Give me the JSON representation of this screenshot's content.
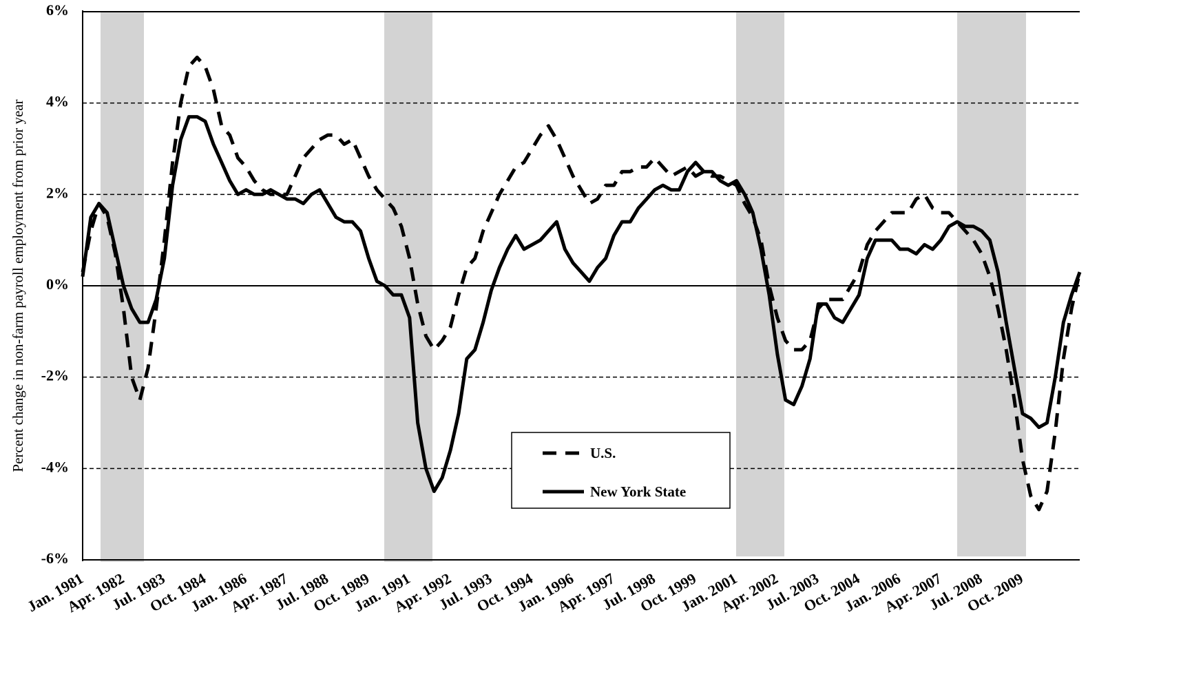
{
  "chart_data": {
    "type": "line",
    "y_label": "Percent change in non-farm payroll employment from prior year",
    "categories": [
      "Jan. 1981",
      null,
      null,
      null,
      null,
      "Apr. 1982",
      null,
      null,
      null,
      null,
      "Jul. 1983",
      null,
      null,
      null,
      null,
      "Oct. 1984",
      null,
      null,
      null,
      null,
      "Jan. 1986",
      null,
      null,
      null,
      null,
      "Apr. 1987",
      null,
      null,
      null,
      null,
      "Jul. 1988",
      null,
      null,
      null,
      null,
      "Oct. 1989",
      null,
      null,
      null,
      null,
      "Jan. 1991",
      null,
      null,
      null,
      null,
      "Apr. 1992",
      null,
      null,
      null,
      null,
      "Jul. 1993",
      null,
      null,
      null,
      null,
      "Oct. 1994",
      null,
      null,
      null,
      null,
      "Jan. 1996",
      null,
      null,
      null,
      null,
      "Apr. 1997",
      null,
      null,
      null,
      null,
      "Jul. 1998",
      null,
      null,
      null,
      null,
      "Oct. 1999",
      null,
      null,
      null,
      null,
      "Jan. 2001",
      null,
      null,
      null,
      null,
      "Apr. 2002",
      null,
      null,
      null,
      null,
      "Jul. 2003",
      null,
      null,
      null,
      null,
      "Oct. 2004",
      null,
      null,
      null,
      null,
      "Jan. 2006",
      null,
      null,
      null,
      null,
      "Apr. 2007",
      null,
      null,
      null,
      null,
      "Jul. 2008",
      null,
      null,
      null,
      null,
      "Oct. 2009",
      null,
      null,
      null,
      null,
      null,
      null,
      null
    ],
    "series": [
      {
        "name": "U.S.",
        "color": "#000000",
        "dashed": true,
        "values": [
          0.3,
          1.2,
          1.8,
          1.5,
          0.7,
          -0.5,
          -2.0,
          -2.5,
          -1.8,
          -0.5,
          1.0,
          2.7,
          4.0,
          4.8,
          5.0,
          4.8,
          4.3,
          3.5,
          3.3,
          2.8,
          2.6,
          2.3,
          2.1,
          2.0,
          2.0,
          2.0,
          2.4,
          2.8,
          3.0,
          3.2,
          3.3,
          3.3,
          3.1,
          3.2,
          2.8,
          2.4,
          2.1,
          1.9,
          1.7,
          1.3,
          0.6,
          -0.4,
          -1.1,
          -1.4,
          -1.2,
          -0.9,
          -0.2,
          0.4,
          0.6,
          1.2,
          1.6,
          2.0,
          2.3,
          2.6,
          2.7,
          3.0,
          3.3,
          3.5,
          3.2,
          2.8,
          2.4,
          2.1,
          1.8,
          1.9,
          2.2,
          2.2,
          2.5,
          2.5,
          2.6,
          2.6,
          2.8,
          2.6,
          2.4,
          2.5,
          2.6,
          2.4,
          2.5,
          2.4,
          2.4,
          2.3,
          2.2,
          1.8,
          1.5,
          1.0,
          0.0,
          -0.7,
          -1.2,
          -1.4,
          -1.4,
          -1.2,
          -0.5,
          -0.3,
          -0.3,
          -0.3,
          0.0,
          0.3,
          0.9,
          1.2,
          1.4,
          1.6,
          1.6,
          1.6,
          1.9,
          2.0,
          1.7,
          1.6,
          1.6,
          1.4,
          1.2,
          1.0,
          0.7,
          0.2,
          -0.5,
          -1.4,
          -2.5,
          -3.8,
          -4.6,
          -4.9,
          -4.5,
          -3.2,
          -1.6,
          -0.5,
          0.3
        ]
      },
      {
        "name": "New York State",
        "color": "#000000",
        "dashed": false,
        "values": [
          0.2,
          1.5,
          1.8,
          1.6,
          0.8,
          0.0,
          -0.5,
          -0.8,
          -0.8,
          -0.3,
          0.6,
          2.2,
          3.2,
          3.7,
          3.7,
          3.6,
          3.1,
          2.7,
          2.3,
          2.0,
          2.1,
          2.0,
          2.0,
          2.1,
          2.0,
          1.9,
          1.9,
          1.8,
          2.0,
          2.1,
          1.8,
          1.5,
          1.4,
          1.4,
          1.2,
          0.6,
          0.1,
          0.0,
          -0.2,
          -0.2,
          -0.7,
          -3.0,
          -4.0,
          -4.5,
          -4.2,
          -3.6,
          -2.8,
          -1.6,
          -1.4,
          -0.8,
          -0.1,
          0.4,
          0.8,
          1.1,
          0.8,
          0.9,
          1.0,
          1.2,
          1.4,
          0.8,
          0.5,
          0.3,
          0.1,
          0.4,
          0.6,
          1.1,
          1.4,
          1.4,
          1.7,
          1.9,
          2.1,
          2.2,
          2.1,
          2.1,
          2.5,
          2.7,
          2.5,
          2.5,
          2.3,
          2.2,
          2.3,
          2.0,
          1.6,
          0.8,
          -0.2,
          -1.5,
          -2.5,
          -2.6,
          -2.2,
          -1.6,
          -0.4,
          -0.4,
          -0.7,
          -0.8,
          -0.5,
          -0.2,
          0.6,
          1.0,
          1.0,
          1.0,
          0.8,
          0.8,
          0.7,
          0.9,
          0.8,
          1.0,
          1.3,
          1.4,
          1.3,
          1.3,
          1.2,
          1.0,
          0.3,
          -0.8,
          -1.8,
          -2.8,
          -2.9,
          -3.1,
          -3.0,
          -2.0,
          -0.8,
          -0.2,
          0.3
        ]
      }
    ],
    "ylim": [
      -6,
      6
    ],
    "yticks": [
      {
        "value": -6,
        "label": "-6%"
      },
      {
        "value": -4,
        "label": "-4%"
      },
      {
        "value": -2,
        "label": "-2%"
      },
      {
        "value": 0,
        "label": "0%"
      },
      {
        "value": 2,
        "label": "2%"
      },
      {
        "value": 4,
        "label": "4%"
      },
      {
        "value": 6,
        "label": "6%"
      }
    ],
    "grid": true,
    "legend": "bottom-center"
  }
}
